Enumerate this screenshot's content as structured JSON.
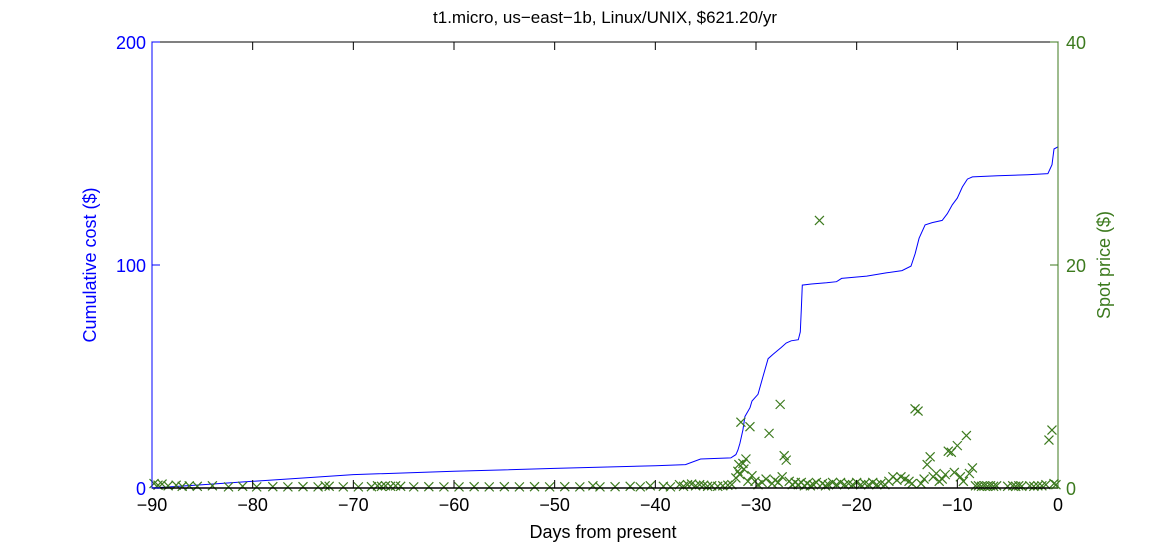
{
  "chart_data": {
    "type": "line+scatter",
    "title": "t1.micro, us−east−1b, Linux/UNIX, $621.20/yr",
    "xlabel": "Days from present",
    "ylabel_left": "Cumulative cost ($)",
    "ylabel_right": "Spot price ($)",
    "xlim": [
      -90,
      0
    ],
    "ylim_left": [
      0,
      200
    ],
    "ylim_right": [
      0,
      40
    ],
    "x_ticks": [
      -90,
      -80,
      -70,
      -60,
      -50,
      -40,
      -30,
      -20,
      -10,
      0
    ],
    "x_tick_labels": [
      "−90",
      "−80",
      "−70",
      "−60",
      "−50",
      "−40",
      "−30",
      "−20",
      "−10",
      "0"
    ],
    "y_left_ticks": [
      0,
      100,
      200
    ],
    "y_left_tick_labels": [
      "0",
      "100",
      "200"
    ],
    "y_right_ticks": [
      0,
      20,
      40
    ],
    "y_right_tick_labels": [
      "0",
      "20",
      "40"
    ],
    "colors": {
      "left_axis": "#0000ff",
      "right_axis": "#3c7a1e",
      "axes": "#000000"
    },
    "grid": false,
    "series": [
      {
        "kind": "line",
        "axis": "left",
        "points": [
          [
            -90,
            0
          ],
          [
            -85,
            1.5
          ],
          [
            -80,
            3
          ],
          [
            -75,
            4.5
          ],
          [
            -70,
            6
          ],
          [
            -60,
            7.5
          ],
          [
            -50,
            8.8
          ],
          [
            -40,
            10
          ],
          [
            -37,
            10.5
          ],
          [
            -35.5,
            13
          ],
          [
            -32.5,
            13.5
          ],
          [
            -32,
            15
          ],
          [
            -31.8,
            17
          ],
          [
            -31.6,
            20
          ],
          [
            -31.3,
            26
          ],
          [
            -31.1,
            32
          ],
          [
            -30.6,
            36
          ],
          [
            -30.4,
            39
          ],
          [
            -29.8,
            42
          ],
          [
            -29.3,
            50
          ],
          [
            -28.8,
            58
          ],
          [
            -28.3,
            60
          ],
          [
            -27.5,
            63
          ],
          [
            -27,
            65
          ],
          [
            -26.5,
            66
          ],
          [
            -25.8,
            66.5
          ],
          [
            -25.6,
            70
          ],
          [
            -25.5,
            80
          ],
          [
            -25.4,
            91
          ],
          [
            -24.5,
            91.5
          ],
          [
            -23,
            92
          ],
          [
            -22,
            92.5
          ],
          [
            -21.5,
            94
          ],
          [
            -19,
            95
          ],
          [
            -17,
            96.5
          ],
          [
            -15.5,
            97.5
          ],
          [
            -14.6,
            99.5
          ],
          [
            -14.2,
            105
          ],
          [
            -13.8,
            112
          ],
          [
            -13.2,
            118
          ],
          [
            -12.5,
            119
          ],
          [
            -11.5,
            120
          ],
          [
            -11,
            123
          ],
          [
            -10.5,
            127
          ],
          [
            -10,
            130
          ],
          [
            -9.5,
            135
          ],
          [
            -9,
            138.5
          ],
          [
            -8.5,
            139.5
          ],
          [
            -6,
            140
          ],
          [
            -3,
            140.5
          ],
          [
            -1,
            141
          ],
          [
            -0.6,
            145
          ],
          [
            -0.4,
            152
          ],
          [
            0,
            153
          ]
        ]
      },
      {
        "kind": "scatter",
        "axis": "right",
        "marker": "x",
        "points": [
          [
            -89.8,
            0.4
          ],
          [
            -89.4,
            0.25
          ],
          [
            -89,
            0.35
          ],
          [
            -88.4,
            0.2
          ],
          [
            -87.6,
            0.25
          ],
          [
            -87,
            0.15
          ],
          [
            -86.3,
            0.2
          ],
          [
            -85.5,
            0.15
          ],
          [
            -84,
            0.2
          ],
          [
            -82.4,
            0.1
          ],
          [
            -81,
            0.15
          ],
          [
            -79.6,
            0.1
          ],
          [
            -78,
            0.12
          ],
          [
            -76.5,
            0.1
          ],
          [
            -75,
            0.12
          ],
          [
            -73.5,
            0.1
          ],
          [
            -72.8,
            0.2
          ],
          [
            -72.4,
            0.15
          ],
          [
            -71,
            0.1
          ],
          [
            -69.5,
            0.1
          ],
          [
            -68.2,
            0.12
          ],
          [
            -67.6,
            0.2
          ],
          [
            -67.2,
            0.15
          ],
          [
            -66.8,
            0.2
          ],
          [
            -66.3,
            0.15
          ],
          [
            -65.8,
            0.2
          ],
          [
            -65.3,
            0.15
          ],
          [
            -64,
            0.1
          ],
          [
            -62.5,
            0.12
          ],
          [
            -61,
            0.1
          ],
          [
            -59.5,
            0.1
          ],
          [
            -58,
            0.12
          ],
          [
            -56.5,
            0.1
          ],
          [
            -55,
            0.12
          ],
          [
            -53.5,
            0.1
          ],
          [
            -52,
            0.12
          ],
          [
            -50.5,
            0.1
          ],
          [
            -49,
            0.12
          ],
          [
            -47.5,
            0.1
          ],
          [
            -46.2,
            0.2
          ],
          [
            -45.5,
            0.1
          ],
          [
            -44,
            0.12
          ],
          [
            -42.5,
            0.15
          ],
          [
            -41.5,
            0.1
          ],
          [
            -40.5,
            0.2
          ],
          [
            -39.2,
            0.15
          ],
          [
            -38.5,
            0.1
          ],
          [
            -37.6,
            0.3
          ],
          [
            -37.2,
            0.15
          ],
          [
            -36.8,
            0.3
          ],
          [
            -36.4,
            0.35
          ],
          [
            -36,
            0.2
          ],
          [
            -35.6,
            0.3
          ],
          [
            -35.2,
            0.25
          ],
          [
            -34.8,
            0.15
          ],
          [
            -34.4,
            0.2
          ],
          [
            -33.8,
            0.15
          ],
          [
            -33.3,
            0.2
          ],
          [
            -32.8,
            0.25
          ],
          [
            -32.4,
            0.3
          ],
          [
            -32,
            0.9
          ],
          [
            -31.8,
            1.5
          ],
          [
            -31.7,
            2.1
          ],
          [
            -31.6,
            1.2
          ],
          [
            -31.5,
            5.9
          ],
          [
            -31.3,
            2.2
          ],
          [
            -31.2,
            1.7
          ],
          [
            -31,
            2.6
          ],
          [
            -30.8,
            0.6
          ],
          [
            -30.6,
            5.5
          ],
          [
            -30.4,
            1.1
          ],
          [
            -30.1,
            0.6
          ],
          [
            -29.8,
            0.3
          ],
          [
            -29.4,
            0.5
          ],
          [
            -29,
            0.8
          ],
          [
            -28.7,
            4.9
          ],
          [
            -28.4,
            0.4
          ],
          [
            -28.1,
            0.7
          ],
          [
            -27.8,
            0.5
          ],
          [
            -27.6,
            7.5
          ],
          [
            -27.4,
            1.0
          ],
          [
            -27.2,
            2.9
          ],
          [
            -27,
            2.5
          ],
          [
            -26.7,
            0.6
          ],
          [
            -26.4,
            0.3
          ],
          [
            -26.1,
            0.5
          ],
          [
            -25.8,
            0.3
          ],
          [
            -25.5,
            0.5
          ],
          [
            -25.2,
            0.2
          ],
          [
            -24.9,
            0.4
          ],
          [
            -24.6,
            0.2
          ],
          [
            -24.3,
            0.3
          ],
          [
            -24,
            0.5
          ],
          [
            -23.7,
            24
          ],
          [
            -23.4,
            0.4
          ],
          [
            -23.1,
            0.2
          ],
          [
            -22.8,
            0.3
          ],
          [
            -22.4,
            0.5
          ],
          [
            -22,
            0.3
          ],
          [
            -21.6,
            0.5
          ],
          [
            -21.2,
            0.3
          ],
          [
            -20.8,
            0.4
          ],
          [
            -20.4,
            0.3
          ],
          [
            -20,
            0.5
          ],
          [
            -19.6,
            0.3
          ],
          [
            -19.2,
            0.4
          ],
          [
            -18.8,
            0.3
          ],
          [
            -18.4,
            0.5
          ],
          [
            -18,
            0.3
          ],
          [
            -17.6,
            0.4
          ],
          [
            -17.2,
            0.3
          ],
          [
            -16.8,
            0.6
          ],
          [
            -16.4,
            1.0
          ],
          [
            -16,
            0.7
          ],
          [
            -15.6,
            1.0
          ],
          [
            -15.2,
            0.8
          ],
          [
            -14.8,
            0.6
          ],
          [
            -14.5,
            0.4
          ],
          [
            -14.2,
            7.1
          ],
          [
            -13.9,
            6.9
          ],
          [
            -13.6,
            0.4
          ],
          [
            -13.3,
            0.8
          ],
          [
            -13,
            2.1
          ],
          [
            -12.7,
            2.8
          ],
          [
            -12.4,
            1.0
          ],
          [
            -12.1,
            1.3
          ],
          [
            -11.8,
            0.6
          ],
          [
            -11.5,
            0.8
          ],
          [
            -11.2,
            1.2
          ],
          [
            -10.9,
            3.3
          ],
          [
            -10.6,
            3.2
          ],
          [
            -10.3,
            1.4
          ],
          [
            -10,
            3.8
          ],
          [
            -9.7,
            1.0
          ],
          [
            -9.4,
            0.6
          ],
          [
            -9.1,
            4.7
          ],
          [
            -8.8,
            1.3
          ],
          [
            -8.5,
            1.8
          ],
          [
            -8.2,
            0.2
          ],
          [
            -7.9,
            0.2
          ],
          [
            -7.6,
            0.15
          ],
          [
            -7.3,
            0.2
          ],
          [
            -7,
            0.15
          ],
          [
            -6.7,
            0.2
          ],
          [
            -6.4,
            0.15
          ],
          [
            -6.1,
            0.2
          ],
          [
            -5,
            0.15
          ],
          [
            -4.5,
            0.2
          ],
          [
            -4.2,
            0.15
          ],
          [
            -3.9,
            0.2
          ],
          [
            -3.6,
            0.15
          ],
          [
            -2.8,
            0.2
          ],
          [
            -2.4,
            0.15
          ],
          [
            -2,
            0.2
          ],
          [
            -1.6,
            0.2
          ],
          [
            -1.2,
            0.3
          ],
          [
            -0.9,
            4.3
          ],
          [
            -0.6,
            5.2
          ],
          [
            -0.4,
            0.4
          ],
          [
            -0.2,
            0.3
          ]
        ]
      }
    ]
  }
}
